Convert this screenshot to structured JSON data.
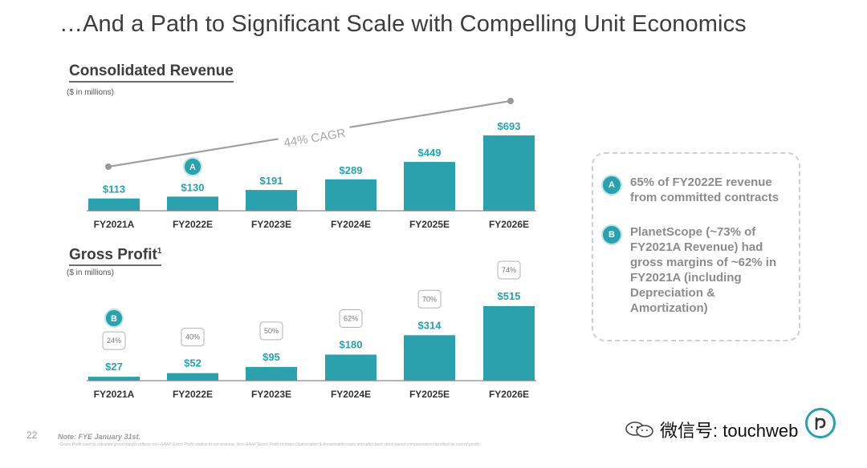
{
  "page_title": "…And a Path to Significant Scale with Compelling Unit Economics",
  "page_number": "22",
  "revenue_section": {
    "title": "Consolidated Revenue",
    "units": "($ in millions)",
    "cagr_label": "44% CAGR",
    "marker": "A"
  },
  "gross_profit_section": {
    "title": "Gross Profit",
    "footnote_mark": "1",
    "units": "($ in millions)",
    "marker": "B"
  },
  "chart_data": [
    {
      "type": "bar",
      "title": "Consolidated Revenue",
      "ylabel": "$ in millions",
      "categories": [
        "FY2021A",
        "FY2022E",
        "FY2023E",
        "FY2024E",
        "FY2025E",
        "FY2026E"
      ],
      "values": [
        113,
        130,
        191,
        289,
        449,
        693
      ],
      "value_labels": [
        "$113",
        "$130",
        "$191",
        "$289",
        "$449",
        "$693"
      ],
      "ylim": [
        0,
        700
      ],
      "annotation": "44% CAGR",
      "color": "#2aa1ac"
    },
    {
      "type": "bar",
      "title": "Gross Profit",
      "ylabel": "$ in millions",
      "categories": [
        "FY2021A",
        "FY2022E",
        "FY2023E",
        "FY2024E",
        "FY2025E",
        "FY2026E"
      ],
      "values": [
        27,
        52,
        95,
        180,
        314,
        515
      ],
      "value_labels": [
        "$27",
        "$52",
        "$95",
        "$180",
        "$314",
        "$515"
      ],
      "margins": [
        "24%",
        "40%",
        "50%",
        "62%",
        "70%",
        "74%"
      ],
      "ylim": [
        0,
        515
      ],
      "color": "#2aa1ac"
    }
  ],
  "callouts": [
    {
      "marker": "A",
      "text": "65% of FY2022E revenue from committed contracts"
    },
    {
      "marker": "B",
      "text": "PlanetScope (~73% of FY2021A Revenue) had gross margins of ~62% in FY2021A (including Depreciation & Amortization)"
    }
  ],
  "footer": {
    "note": "Note: FYE January 31st.",
    "footnote": "¹ Gross Profit used to calculate gross margin reflects non-GAAP Gross Profit relative to net revenue. Non-GAAP Gross Profit includes Depreciation & Amortization costs and adds back stock-based compensation classified as cost of goods"
  },
  "watermark": {
    "text": "微信号: touchweb"
  },
  "colors": {
    "accent": "#2aa1ac",
    "trend_line": "#a0a0a0"
  }
}
